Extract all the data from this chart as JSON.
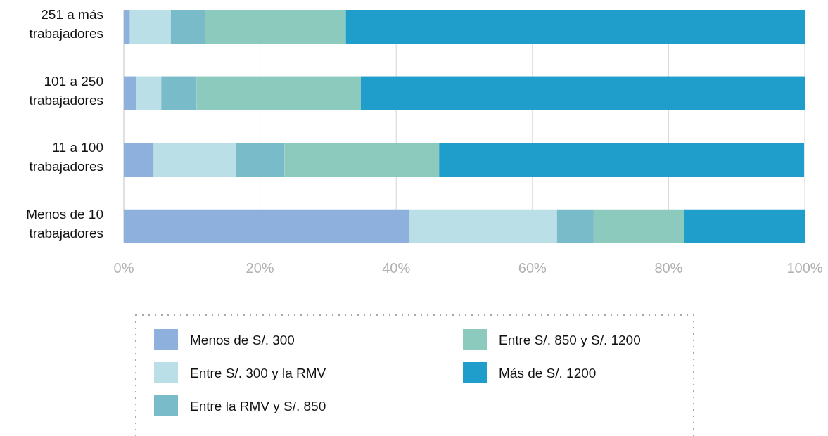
{
  "chart_data": {
    "type": "bar",
    "orientation": "horizontal",
    "stacked": true,
    "categories": [
      "251 a más trabajadores",
      "101 a 250 trabajadores",
      "11 a 100 trabajadores",
      "Menos de 10 trabajadores"
    ],
    "series": [
      {
        "name": "Menos de S/. 300",
        "color": "#8eb0dd",
        "values": [
          0.9,
          1.8,
          4.4,
          42.0
        ]
      },
      {
        "name": "Entre S/. 300 y la RMV",
        "color": "#badfe7",
        "values": [
          6.0,
          3.7,
          12.1,
          21.6
        ]
      },
      {
        "name": "Entre la RMV y S/. 850",
        "color": "#79bbc9",
        "values": [
          5.0,
          5.2,
          7.1,
          5.4
        ]
      },
      {
        "name": "Entre S/. 850 y S/. 1200",
        "color": "#8ccabe",
        "values": [
          20.7,
          24.1,
          22.7,
          13.3
        ]
      },
      {
        "name": "Más de S/. 1200",
        "color": "#1f9dcb",
        "values": [
          67.4,
          65.2,
          53.6,
          17.7
        ]
      }
    ],
    "xlim": [
      0,
      100
    ],
    "xticks": [
      {
        "value": 0,
        "label": "0%"
      },
      {
        "value": 20,
        "label": "20%"
      },
      {
        "value": 40,
        "label": "40%"
      },
      {
        "value": 60,
        "label": "60%"
      },
      {
        "value": 80,
        "label": "80%"
      },
      {
        "value": 100,
        "label": "100%"
      }
    ],
    "grid": "x",
    "legend": "bottom"
  }
}
